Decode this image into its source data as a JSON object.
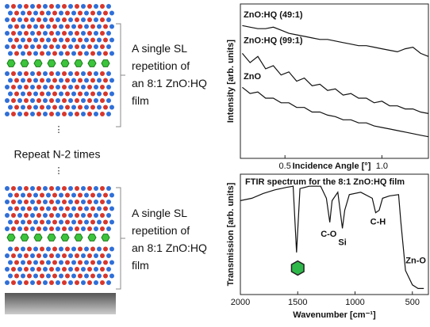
{
  "figure": {
    "left": {
      "block_label_top": "A single SL repetition of an 8:1 ZnO:HQ film",
      "repeat_label": "Repeat N-2 times",
      "block_label_bottom": "A single SL repetition of an 8:1 ZnO:HQ film"
    },
    "chart_data": [
      {
        "type": "line",
        "ylabel": "Intensity [arb. units]",
        "xlabel": "Incidence Angle [°]",
        "xlim": [
          0.27,
          1.24
        ],
        "xticks": [
          0.5,
          {
            "value": 1,
            "label": "1.0"
          }
        ],
        "ylim": [
          0,
          10
        ],
        "x": [
          0.28,
          0.32,
          0.36,
          0.4,
          0.44,
          0.48,
          0.52,
          0.56,
          0.6,
          0.64,
          0.68,
          0.72,
          0.76,
          0.8,
          0.84,
          0.88,
          0.92,
          0.96,
          1.0,
          1.04,
          1.08,
          1.12,
          1.16,
          1.2,
          1.24
        ],
        "series": [
          {
            "name": "ZnO:HQ (49:1)",
            "color": "#111111",
            "values": [
              8.6,
              8.5,
              8.4,
              8.4,
              8.5,
              8.3,
              8.1,
              8.0,
              7.9,
              7.8,
              7.7,
              7.7,
              7.6,
              7.5,
              7.4,
              7.3,
              7.3,
              7.2,
              7.1,
              7.0,
              6.9,
              7.1,
              7.2,
              6.8,
              6.6
            ]
          },
          {
            "name": "ZnO:HQ (99:1)",
            "color": "#111111",
            "values": [
              6.8,
              6.2,
              6.6,
              5.8,
              6.0,
              5.4,
              5.6,
              5.0,
              5.2,
              4.7,
              4.8,
              4.4,
              4.5,
              4.1,
              4.2,
              3.9,
              3.9,
              3.6,
              3.7,
              3.4,
              3.4,
              3.2,
              3.2,
              3.0,
              2.9
            ]
          },
          {
            "name": "ZnO",
            "color": "#111111",
            "values": [
              4.6,
              4.2,
              4.3,
              3.9,
              3.9,
              3.6,
              3.6,
              3.3,
              3.3,
              3.0,
              3.0,
              2.8,
              2.7,
              2.5,
              2.5,
              2.3,
              2.3,
              2.1,
              2.0,
              1.9,
              1.8,
              1.7,
              1.6,
              1.5,
              1.4
            ]
          }
        ]
      },
      {
        "type": "line",
        "title": "FTIR spectrum for the 8:1 ZnO:HQ film",
        "ylabel": "Transmission [arb. units]",
        "xlabel": "Wavenumber [cm⁻¹]",
        "xlim": [
          2000,
          360
        ],
        "xticks": [
          2000,
          1500,
          1000,
          500
        ],
        "ylim": [
          0,
          1
        ],
        "x": [
          2000,
          1900,
          1800,
          1700,
          1600,
          1540,
          1510,
          1480,
          1400,
          1300,
          1250,
          1220,
          1200,
          1150,
          1110,
          1090,
          1050,
          950,
          850,
          820,
          790,
          760,
          700,
          620,
          600,
          560,
          500,
          450,
          400
        ],
        "series": [
          {
            "name": null,
            "color": "#111111",
            "values": [
              0.78,
              0.8,
              0.84,
              0.87,
              0.89,
              0.9,
              0.35,
              0.88,
              0.9,
              0.9,
              0.8,
              0.6,
              0.78,
              0.85,
              0.55,
              0.7,
              0.83,
              0.85,
              0.8,
              0.68,
              0.7,
              0.8,
              0.82,
              0.83,
              0.6,
              0.2,
              0.08,
              0.05,
              0.05
            ]
          }
        ],
        "annotations": [
          "C-O",
          "Si",
          "C-H",
          "Zn-O"
        ]
      }
    ]
  }
}
